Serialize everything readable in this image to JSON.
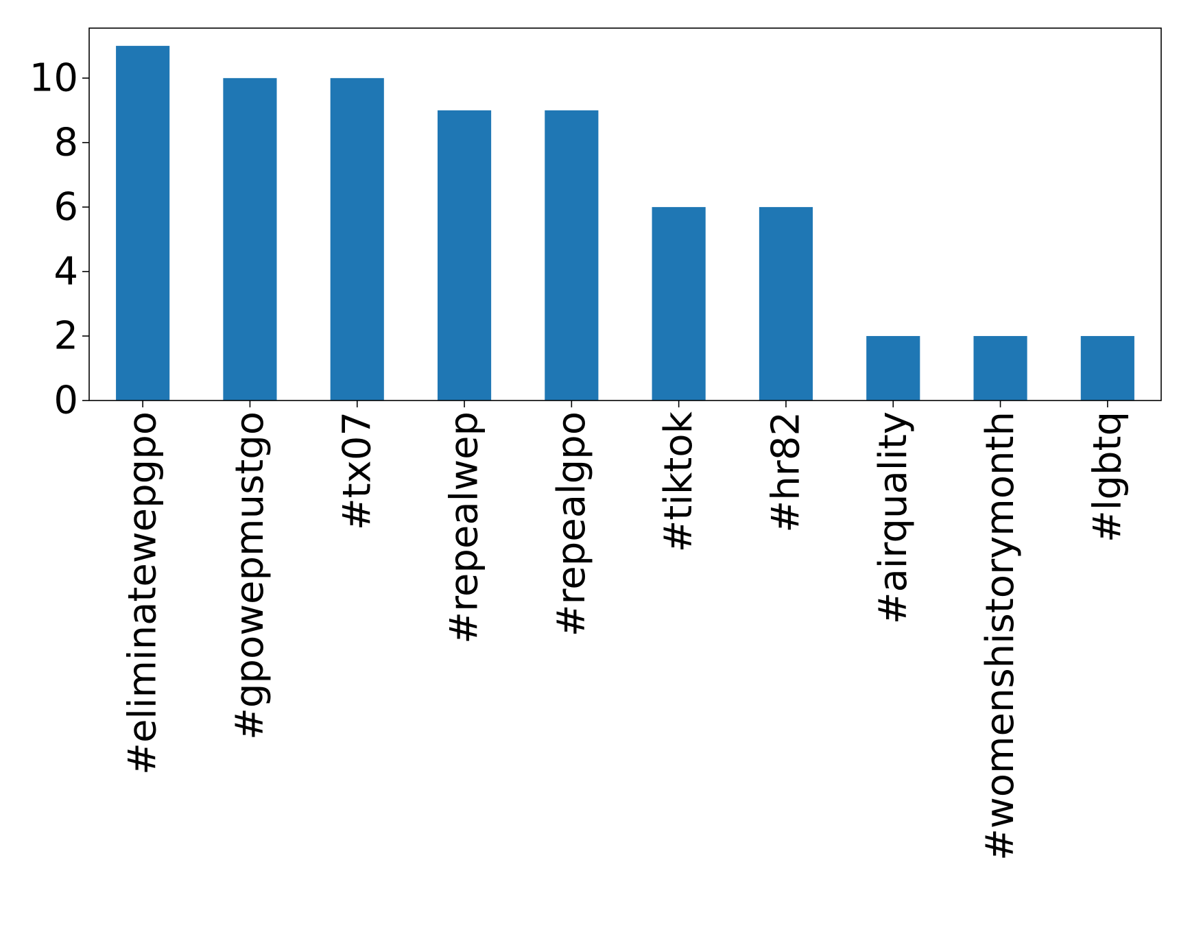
{
  "chart_data": {
    "type": "bar",
    "title": "",
    "xlabel": "",
    "ylabel": "",
    "categories": [
      "#eliminatewepgpo",
      "#gpowepmustgo",
      "#tx07",
      "#repealwep",
      "#repealgpo",
      "#tiktok",
      "#hr82",
      "#airquality",
      "#womenshistorymonth",
      "#lgbtq"
    ],
    "values": [
      11,
      10,
      10,
      9,
      9,
      6,
      6,
      2,
      2,
      2
    ],
    "ylim": [
      0,
      11.55
    ],
    "yticks": [
      0,
      2,
      4,
      6,
      8,
      10
    ],
    "grid": false,
    "legend": "none",
    "colors": {
      "bar": "#1f77b4"
    }
  }
}
